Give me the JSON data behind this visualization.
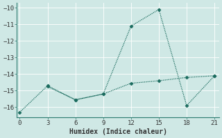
{
  "line1_x": [
    0,
    3,
    6,
    9,
    12,
    15,
    18,
    21
  ],
  "line1_y": [
    -16.3,
    -14.7,
    -15.55,
    -15.2,
    -11.1,
    -10.1,
    -15.9,
    -14.1
  ],
  "line2_x": [
    3,
    6,
    9,
    12,
    15,
    18,
    21
  ],
  "line2_y": [
    -14.75,
    -15.55,
    -15.2,
    -14.55,
    -14.4,
    -14.2,
    -14.1
  ],
  "line_color": "#1a6b5e",
  "markersize": 2.5,
  "xlabel": "Humidex (Indice chaleur)",
  "xlim": [
    -0.3,
    21.5
  ],
  "ylim": [
    -16.6,
    -9.7
  ],
  "yticks": [
    -16,
    -15,
    -14,
    -13,
    -12,
    -11,
    -10
  ],
  "xticks": [
    0,
    3,
    6,
    9,
    12,
    15,
    18,
    21
  ],
  "bg_color": "#cfe8e5",
  "grid_color": "#b0d4d0",
  "axis_color": "#2a7a6e",
  "tick_color": "#333333",
  "tick_fontsize": 6.5,
  "xlabel_fontsize": 7.0
}
